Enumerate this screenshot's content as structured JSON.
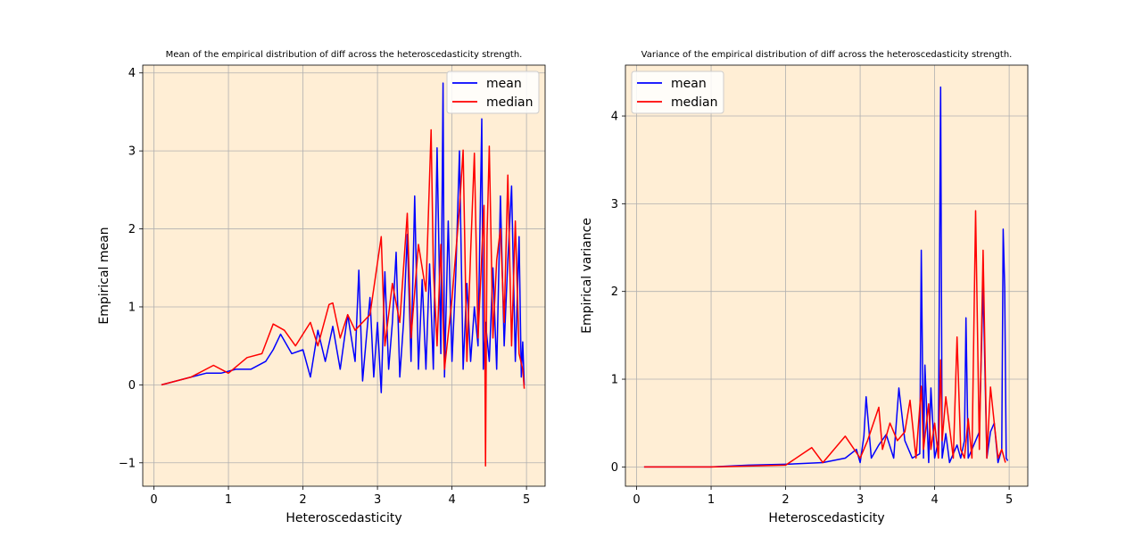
{
  "chart_data": [
    {
      "type": "line",
      "title": "Mean of the empirical distribution of diff across the heteroscedasticity strength.",
      "xlabel": "Heteroscedasticity",
      "ylabel": "Empirical mean",
      "xlim": [
        -0.15,
        5.25
      ],
      "ylim": [
        -1.3,
        4.1
      ],
      "xticks": [
        0,
        1,
        2,
        3,
        4,
        5
      ],
      "xtick_labels": [
        "0",
        "1",
        "2",
        "3",
        "4",
        "5"
      ],
      "yticks": [
        -1,
        0,
        1,
        2,
        3,
        4
      ],
      "ytick_labels": [
        "−1",
        "0",
        "1",
        "2",
        "3",
        "4"
      ],
      "grid": true,
      "background": "#ffeed5",
      "legend_position": "top-right",
      "series": [
        {
          "name": "mean",
          "color": "#0000ff",
          "x": [
            0.1,
            0.3,
            0.5,
            0.7,
            0.9,
            1.1,
            1.3,
            1.5,
            1.6,
            1.7,
            1.85,
            2.0,
            2.1,
            2.2,
            2.3,
            2.4,
            2.5,
            2.6,
            2.7,
            2.75,
            2.8,
            2.85,
            2.9,
            2.95,
            3.0,
            3.05,
            3.1,
            3.15,
            3.2,
            3.25,
            3.3,
            3.35,
            3.4,
            3.45,
            3.5,
            3.55,
            3.6,
            3.65,
            3.7,
            3.75,
            3.8,
            3.85,
            3.88,
            3.9,
            3.95,
            4.0,
            4.05,
            4.1,
            4.15,
            4.2,
            4.25,
            4.3,
            4.35,
            4.4,
            4.42,
            4.45,
            4.5,
            4.55,
            4.6,
            4.65,
            4.7,
            4.75,
            4.8,
            4.85,
            4.9,
            4.93,
            4.95,
            4.97
          ],
          "y": [
            0,
            0.05,
            0.1,
            0.15,
            0.15,
            0.2,
            0.2,
            0.3,
            0.45,
            0.65,
            0.4,
            0.45,
            0.1,
            0.7,
            0.3,
            0.75,
            0.2,
            0.9,
            0.3,
            1.47,
            0.05,
            0.6,
            1.12,
            0.1,
            0.8,
            -0.1,
            1.45,
            0.2,
            0.8,
            1.7,
            0.1,
            0.8,
            1.93,
            0.3,
            2.42,
            0.2,
            1.35,
            0.2,
            1.55,
            0.2,
            3.04,
            0.4,
            3.87,
            0.1,
            2.1,
            0.3,
            1.4,
            3.0,
            0.2,
            1.3,
            0.3,
            1.0,
            0.5,
            3.41,
            0.2,
            0.8,
            0.3,
            1.5,
            0.2,
            2.42,
            0.5,
            1.6,
            2.55,
            0.3,
            1.9,
            0.1,
            0.55,
            0.0
          ]
        },
        {
          "name": "median",
          "color": "#ff0000",
          "x": [
            0.1,
            0.3,
            0.5,
            0.8,
            1.0,
            1.25,
            1.45,
            1.6,
            1.75,
            1.9,
            2.1,
            2.2,
            2.35,
            2.4,
            2.5,
            2.6,
            2.7,
            2.8,
            2.9,
            3.05,
            3.1,
            3.2,
            3.3,
            3.4,
            3.45,
            3.55,
            3.65,
            3.72,
            3.75,
            3.8,
            3.85,
            3.9,
            4.0,
            4.1,
            4.15,
            4.2,
            4.25,
            4.3,
            4.35,
            4.43,
            4.45,
            4.47,
            4.5,
            4.55,
            4.6,
            4.65,
            4.7,
            4.75,
            4.8,
            4.85,
            4.9,
            4.95,
            4.97
          ],
          "y": [
            0,
            0.05,
            0.1,
            0.25,
            0.15,
            0.35,
            0.4,
            0.78,
            0.7,
            0.5,
            0.8,
            0.5,
            1.03,
            1.05,
            0.6,
            0.9,
            0.7,
            0.8,
            0.9,
            1.9,
            0.5,
            1.3,
            0.8,
            2.2,
            0.6,
            1.8,
            1.2,
            3.27,
            1.5,
            0.5,
            1.8,
            0.2,
            1.1,
            2.27,
            3.01,
            0.3,
            1.7,
            2.97,
            0.6,
            2.3,
            -1.04,
            1.9,
            3.06,
            0.6,
            1.6,
            2.0,
            0.8,
            2.69,
            0.5,
            2.1,
            0.4,
            0.2,
            -0.05
          ]
        }
      ]
    },
    {
      "type": "line",
      "title": "Variance of the empirical distribution of diff across the heteroscedasticity strength.",
      "xlabel": "Heteroscedasticity",
      "ylabel": "Empirical variance",
      "xlim": [
        -0.15,
        5.25
      ],
      "ylim": [
        -0.22,
        4.58
      ],
      "xticks": [
        0,
        1,
        2,
        3,
        4,
        5
      ],
      "xtick_labels": [
        "0",
        "1",
        "2",
        "3",
        "4",
        "5"
      ],
      "yticks": [
        0,
        1,
        2,
        3,
        4
      ],
      "ytick_labels": [
        "0",
        "1",
        "2",
        "3",
        "4"
      ],
      "grid": true,
      "background": "#ffeed5",
      "legend_position": "top-left",
      "series": [
        {
          "name": "mean",
          "color": "#0000ff",
          "x": [
            0.1,
            1.0,
            1.5,
            2.0,
            2.5,
            2.8,
            2.95,
            3.0,
            3.05,
            3.08,
            3.15,
            3.25,
            3.35,
            3.45,
            3.52,
            3.6,
            3.7,
            3.8,
            3.82,
            3.85,
            3.87,
            3.92,
            3.95,
            4.0,
            4.05,
            4.08,
            4.1,
            4.15,
            4.2,
            4.3,
            4.35,
            4.4,
            4.42,
            4.45,
            4.5,
            4.6,
            4.65,
            4.7,
            4.75,
            4.8,
            4.85,
            4.9,
            4.92,
            4.94,
            4.96,
            4.98
          ],
          "y": [
            0,
            0,
            0.02,
            0.03,
            0.05,
            0.1,
            0.2,
            0.05,
            0.35,
            0.8,
            0.1,
            0.25,
            0.37,
            0.1,
            0.9,
            0.3,
            0.1,
            0.15,
            2.47,
            0.1,
            1.16,
            0.05,
            0.9,
            0.1,
            0.3,
            4.33,
            0.1,
            0.38,
            0.05,
            0.25,
            0.1,
            0.3,
            1.7,
            0.1,
            0.2,
            0.4,
            2.08,
            0.1,
            0.4,
            0.5,
            0.05,
            0.2,
            2.71,
            2.05,
            0.1,
            0.07
          ]
        },
        {
          "name": "median",
          "color": "#ff0000",
          "x": [
            0.1,
            1.0,
            1.5,
            2.0,
            2.35,
            2.5,
            2.6,
            2.8,
            3.0,
            3.1,
            3.25,
            3.3,
            3.4,
            3.5,
            3.6,
            3.67,
            3.75,
            3.82,
            3.85,
            3.92,
            3.95,
            4.0,
            4.05,
            4.08,
            4.1,
            4.15,
            4.25,
            4.3,
            4.35,
            4.4,
            4.45,
            4.5,
            4.55,
            4.6,
            4.65,
            4.7,
            4.75,
            4.8,
            4.85,
            4.9,
            4.95
          ],
          "y": [
            0,
            0,
            0.01,
            0.02,
            0.22,
            0.05,
            0.15,
            0.35,
            0.1,
            0.3,
            0.68,
            0.2,
            0.5,
            0.3,
            0.4,
            0.76,
            0.1,
            0.92,
            0.2,
            0.72,
            0.2,
            0.5,
            0.1,
            1.22,
            0.3,
            0.8,
            0.1,
            1.48,
            0.2,
            0.1,
            0.55,
            0.1,
            2.92,
            0.2,
            2.47,
            0.1,
            0.91,
            0.5,
            0.1,
            0.2,
            0.05
          ]
        }
      ]
    }
  ]
}
